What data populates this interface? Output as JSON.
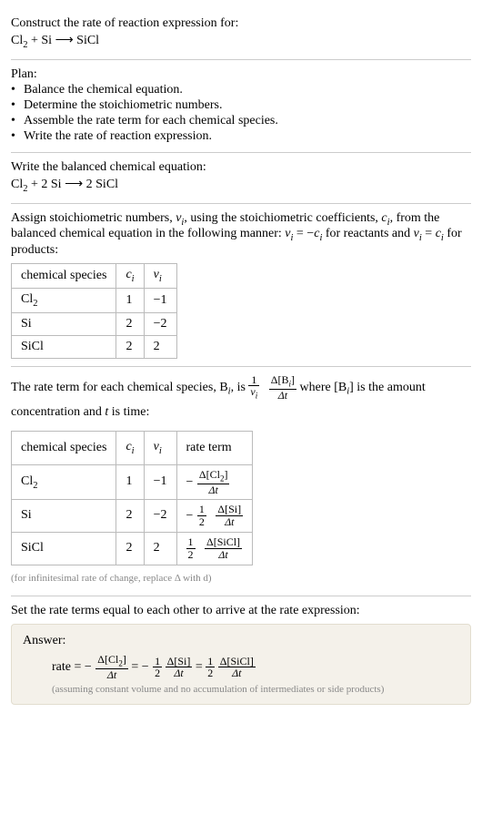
{
  "q": {
    "prompt": "Construct the rate of reaction expression for:",
    "lhs1": "Cl",
    "lhs1sub": "2",
    "plus": " + ",
    "lhs2": "Si",
    "arrow": " ⟶ ",
    "rhs1": "SiCl"
  },
  "plan": {
    "title": "Plan:",
    "items": [
      "Balance the chemical equation.",
      "Determine the stoichiometric numbers.",
      "Assemble the rate term for each chemical species.",
      "Write the rate of reaction expression."
    ]
  },
  "balanced": {
    "title": "Write the balanced chemical equation:",
    "lhs1": "Cl",
    "lhs1sub": "2",
    "plus1": " + 2 Si ",
    "arrow": " ⟶ ",
    "rhs": " 2 SiCl"
  },
  "stoich": {
    "intro1": "Assign stoichiometric numbers, ",
    "nu": "ν",
    "nu_sub": "i",
    "intro2": ", using the stoichiometric coefficients, ",
    "c": "c",
    "c_sub": "i",
    "intro3": ", from the balanced chemical equation in the following manner: ",
    "rel1a": "ν",
    "rel1b": "i",
    "rel1c": " = −",
    "rel1d": "c",
    "rel1e": "i",
    "intro4": " for reactants and ",
    "rel2a": "ν",
    "rel2b": "i",
    "rel2c": " = ",
    "rel2d": "c",
    "rel2e": "i",
    "intro5": " for products:",
    "headers": {
      "species": "chemical species",
      "c": "c",
      "ci": "i",
      "nu": "ν",
      "nui": "i"
    },
    "rows": [
      {
        "sp": "Cl",
        "spsub": "2",
        "c": "1",
        "nu": "−1"
      },
      {
        "sp": "Si",
        "spsub": "",
        "c": "2",
        "nu": "−2"
      },
      {
        "sp": "SiCl",
        "spsub": "",
        "c": "2",
        "nu": "2"
      }
    ]
  },
  "rateterm": {
    "intro1": "The rate term for each chemical species, B",
    "bi": "i",
    "intro2": ", is ",
    "one": "1",
    "nu": "ν",
    "nui": "i",
    "dBi_num": "Δ[B",
    "dBi_num_sub": "i",
    "dBi_num_close": "]",
    "dt": "Δt",
    "intro3": " where [B",
    "intro3sub": "i",
    "intro4": "] is the amount concentration and ",
    "tvar": "t",
    "intro5": " is time:",
    "headers": {
      "species": "chemical species",
      "c": "c",
      "ci": "i",
      "nu": "ν",
      "nui": "i",
      "rate": "rate term"
    },
    "rows": [
      {
        "sp": "Cl",
        "spsub": "2",
        "c": "1",
        "nu": "−1",
        "rt_prefix": "−",
        "rt_coef_num": "",
        "rt_coef_den": "",
        "rt_d_num": "Δ[Cl",
        "rt_d_num_sub": "2",
        "rt_d_num_close": "]",
        "rt_d_den": "Δt"
      },
      {
        "sp": "Si",
        "spsub": "",
        "c": "2",
        "nu": "−2",
        "rt_prefix": "−",
        "rt_coef_num": "1",
        "rt_coef_den": "2",
        "rt_d_num": "Δ[Si]",
        "rt_d_num_sub": "",
        "rt_d_num_close": "",
        "rt_d_den": "Δt"
      },
      {
        "sp": "SiCl",
        "spsub": "",
        "c": "2",
        "nu": "2",
        "rt_prefix": "",
        "rt_coef_num": "1",
        "rt_coef_den": "2",
        "rt_d_num": "Δ[SiCl]",
        "rt_d_num_sub": "",
        "rt_d_num_close": "",
        "rt_d_den": "Δt"
      }
    ],
    "footnote": "(for infinitesimal rate of change, replace Δ with d)"
  },
  "final": {
    "title": "Set the rate terms equal to each other to arrive at the rate expression:",
    "answer_label": "Answer:",
    "rate_eq": "rate = ",
    "t1_prefix": "−",
    "t1_num": "Δ[Cl",
    "t1_num_sub": "2",
    "t1_num_close": "]",
    "t1_den": "Δt",
    "eq": " = ",
    "t2_prefix": "−",
    "t2_cnum": "1",
    "t2_cden": "2",
    "t2_num": "Δ[Si]",
    "t2_den": "Δt",
    "t3_prefix": "",
    "t3_cnum": "1",
    "t3_cden": "2",
    "t3_num": "Δ[SiCl]",
    "t3_den": "Δt",
    "assume": "(assuming constant volume and no accumulation of intermediates or side products)"
  }
}
